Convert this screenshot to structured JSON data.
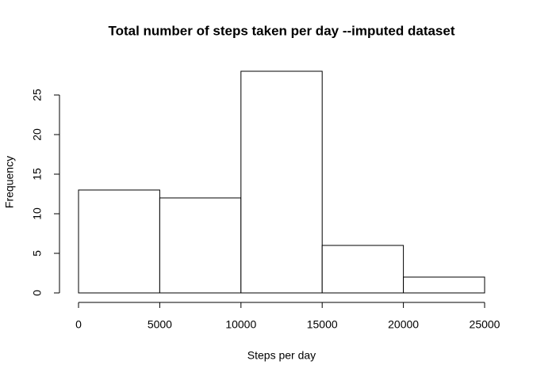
{
  "chart_data": {
    "type": "histogram",
    "title": "Total number of steps taken per day --imputed dataset",
    "x_label": "Steps per day",
    "y_label": "Frequency",
    "bins": [
      0,
      5000,
      10000,
      15000,
      20000,
      25000
    ],
    "values": [
      13,
      12,
      28,
      6,
      2
    ],
    "color": "#ffffff",
    "edge_color": "#000000",
    "xlim": [
      0,
      25000
    ],
    "ylim": [
      0,
      28
    ],
    "xticks": [
      0,
      5000,
      10000,
      15000,
      20000,
      25000
    ],
    "yticks": [
      0,
      5,
      10,
      15,
      20,
      25
    ]
  }
}
